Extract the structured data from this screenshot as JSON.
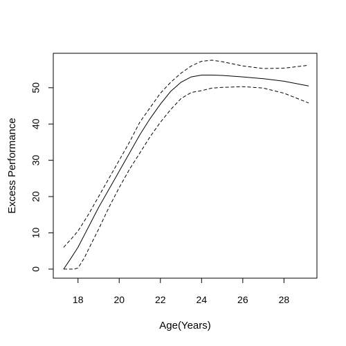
{
  "chart_data": {
    "type": "line",
    "title": "",
    "xlabel": "Age(Years)",
    "ylabel": "Excess Performance",
    "xlim": [
      16.8,
      29.6
    ],
    "ylim": [
      -2.5,
      59.5
    ],
    "xticks": [
      18,
      20,
      22,
      24,
      26,
      28
    ],
    "yticks": [
      0,
      10,
      20,
      30,
      40,
      50
    ],
    "grid": false,
    "legend": "none",
    "series": [
      {
        "style": "solid",
        "color": "#000000",
        "x": [
          17.3,
          17.6,
          18.0,
          18.5,
          19.0,
          19.5,
          20.0,
          20.5,
          21.0,
          21.5,
          22.0,
          22.5,
          23.0,
          23.5,
          24.0,
          24.5,
          25.0,
          26.0,
          27.0,
          28.0,
          29.2
        ],
        "y": [
          0,
          2.5,
          6,
          11.5,
          17,
          22,
          27,
          32,
          37,
          41.5,
          45.5,
          49,
          51.5,
          53,
          53.5,
          53.5,
          53.4,
          53.0,
          52.5,
          51.8,
          50.5
        ]
      },
      {
        "style": "dashed",
        "color": "#000000",
        "x": [
          17.3,
          17.7,
          18.0,
          18.5,
          19.0,
          19.5,
          20.0,
          20.5,
          21.0,
          21.5,
          22.0,
          22.5,
          23.0,
          23.5,
          24.0,
          24.5,
          25.0,
          26.0,
          27.0,
          28.0,
          29.2
        ],
        "y": [
          6,
          8.5,
          10.5,
          15,
          20,
          25,
          30,
          35,
          40.5,
          44.5,
          48.5,
          51.5,
          54,
          56,
          57.3,
          57.6,
          57.2,
          56,
          55.3,
          55.4,
          56.2
        ]
      },
      {
        "style": "dashed",
        "color": "#000000",
        "x": [
          17.3,
          17.8,
          18.0,
          18.3,
          18.6,
          19.0,
          19.5,
          20.0,
          20.5,
          21.0,
          21.5,
          22.0,
          22.5,
          23.0,
          23.5,
          24.0,
          24.5,
          25.0,
          26.0,
          27.0,
          28.0,
          29.2
        ],
        "y": [
          0,
          0,
          0.3,
          3,
          6.5,
          11,
          17,
          22.5,
          27.5,
          32,
          36.5,
          40.5,
          44,
          47,
          48.7,
          49.2,
          49.9,
          50.1,
          50.3,
          49.9,
          48.5,
          45.8
        ]
      }
    ]
  }
}
